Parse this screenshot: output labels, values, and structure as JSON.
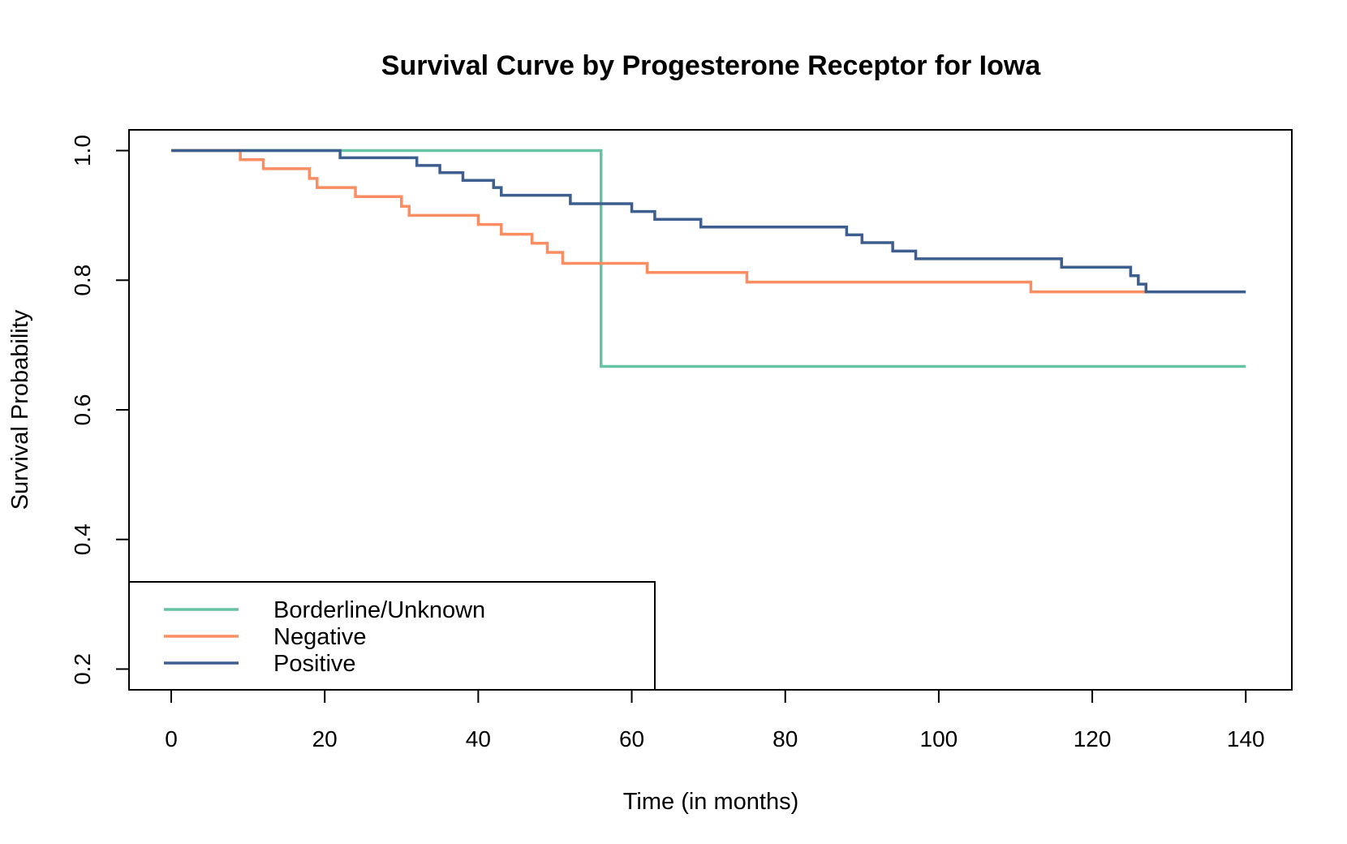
{
  "chart_data": {
    "type": "line",
    "step": true,
    "title": "Survival Curve by Progesterone Receptor for Iowa",
    "xlabel": "Time (in months)",
    "ylabel": "Survival Probability",
    "xlim": [
      -5.5,
      146
    ],
    "ylim": [
      0.168,
      1.032
    ],
    "xticks": [
      0,
      20,
      40,
      60,
      80,
      100,
      120,
      140
    ],
    "xtick_labels": [
      "0",
      "20",
      "40",
      "60",
      "80",
      "100",
      "120",
      "140"
    ],
    "yticks": [
      0.2,
      0.4,
      0.6,
      0.8,
      1.0
    ],
    "ytick_labels": [
      "0.2",
      "0.4",
      "0.6",
      "0.8",
      "1.0"
    ],
    "legend_position": "bottom-left",
    "series": [
      {
        "name": "Borderline/Unknown",
        "color": "#66c2a5",
        "points": [
          [
            0,
            1.0
          ],
          [
            56,
            0.667
          ],
          [
            140,
            0.667
          ]
        ]
      },
      {
        "name": "Negative",
        "color": "#fc8d62",
        "points": [
          [
            0,
            1.0
          ],
          [
            9,
            0.986
          ],
          [
            12,
            0.972
          ],
          [
            18,
            0.957
          ],
          [
            19,
            0.943
          ],
          [
            24,
            0.929
          ],
          [
            30,
            0.914
          ],
          [
            31,
            0.9
          ],
          [
            40,
            0.886
          ],
          [
            43,
            0.871
          ],
          [
            47,
            0.857
          ],
          [
            49,
            0.843
          ],
          [
            51,
            0.826
          ],
          [
            62,
            0.812
          ],
          [
            75,
            0.797
          ],
          [
            112,
            0.782
          ],
          [
            127,
            0.782
          ]
        ]
      },
      {
        "name": "Positive",
        "color": "#3d5f8f",
        "points": [
          [
            0,
            1.0
          ],
          [
            22,
            0.989
          ],
          [
            32,
            0.977
          ],
          [
            35,
            0.966
          ],
          [
            38,
            0.954
          ],
          [
            42,
            0.943
          ],
          [
            43,
            0.931
          ],
          [
            52,
            0.918
          ],
          [
            60,
            0.906
          ],
          [
            63,
            0.894
          ],
          [
            69,
            0.882
          ],
          [
            88,
            0.87
          ],
          [
            90,
            0.858
          ],
          [
            94,
            0.845
          ],
          [
            97,
            0.833
          ],
          [
            116,
            0.82
          ],
          [
            125,
            0.807
          ],
          [
            126,
            0.794
          ],
          [
            127,
            0.782
          ],
          [
            140,
            0.782
          ]
        ]
      }
    ]
  }
}
